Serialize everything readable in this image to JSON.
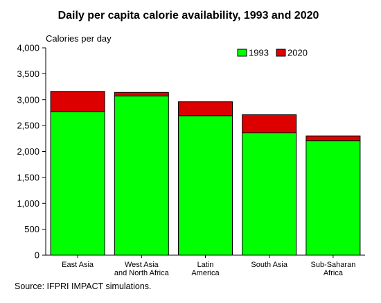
{
  "chart_data": {
    "type": "bar",
    "stacked": true,
    "title": "Daily per capita calorie availability, 1993 and 2020",
    "ylabel": "Calories per day",
    "xlabel": "",
    "ylim": [
      0,
      4000
    ],
    "yticks": [
      0,
      500,
      1000,
      1500,
      2000,
      2500,
      3000,
      3500,
      4000
    ],
    "ytick_labels": [
      "0",
      "500",
      "1,000",
      "1,500",
      "2,000",
      "2,500",
      "3,000",
      "3,500",
      "4,000"
    ],
    "categories": [
      [
        "East Asia"
      ],
      [
        "West Asia",
        "and North Africa"
      ],
      [
        "Latin",
        "America"
      ],
      [
        "South Asia"
      ],
      [
        "Sub-Saharan",
        "Africa"
      ]
    ],
    "series": [
      {
        "name": "1993",
        "color": "#00ff00",
        "values": [
          2770,
          3070,
          2690,
          2360,
          2210
        ]
      },
      {
        "name": "2020",
        "color": "#dd0000",
        "values": [
          390,
          70,
          270,
          350,
          90
        ],
        "note_total": [
          3160,
          3140,
          2960,
          2710,
          2300
        ]
      }
    ],
    "legend_position": "top-right",
    "grid": false,
    "source": "Source:  IFPRI IMPACT simulations."
  }
}
